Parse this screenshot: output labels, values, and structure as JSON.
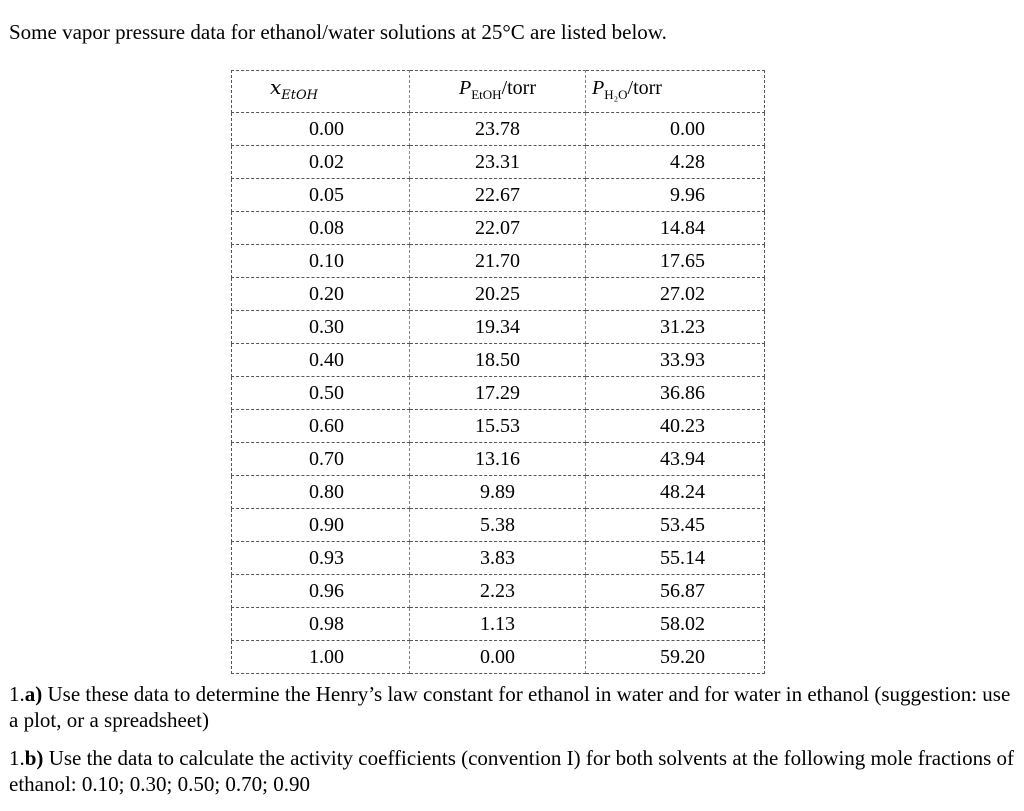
{
  "intro": "Some vapor pressure data for ethanol/water solutions at 25°C are listed below.",
  "table": {
    "headers": {
      "x_symbol": "x",
      "x_sub": "EtOH",
      "p1_symbol": "P",
      "p1_sub": "EtOH",
      "p1_unit": "/torr",
      "p2_symbol": "P",
      "p2_sub": "H₂O",
      "p2_unit": "/torr"
    },
    "rows": [
      [
        "0.00",
        "23.78",
        "0.00"
      ],
      [
        "0.02",
        "23.31",
        "4.28"
      ],
      [
        "0.05",
        "22.67",
        "9.96"
      ],
      [
        "0.08",
        "22.07",
        "14.84"
      ],
      [
        "0.10",
        "21.70",
        "17.65"
      ],
      [
        "0.20",
        "20.25",
        "27.02"
      ],
      [
        "0.30",
        "19.34",
        "31.23"
      ],
      [
        "0.40",
        "18.50",
        "33.93"
      ],
      [
        "0.50",
        "17.29",
        "36.86"
      ],
      [
        "0.60",
        "15.53",
        "40.23"
      ],
      [
        "0.70",
        "13.16",
        "43.94"
      ],
      [
        "0.80",
        "9.89",
        "48.24"
      ],
      [
        "0.90",
        "5.38",
        "53.45"
      ],
      [
        "0.93",
        "3.83",
        "55.14"
      ],
      [
        "0.96",
        "2.23",
        "56.87"
      ],
      [
        "0.98",
        "1.13",
        "58.02"
      ],
      [
        "1.00",
        "0.00",
        "59.20"
      ]
    ]
  },
  "questions": {
    "a": {
      "num": "1.",
      "label": "a)",
      "text": " Use these data to determine the Henry’s law constant for ethanol in water and for water in ethanol (suggestion: use a plot, or a spreadsheet)"
    },
    "b": {
      "num": "1.",
      "label": "b)",
      "text": " Use the data to calculate the activity coefficients (convention I) for both solvents at the following mole fractions of ethanol: 0.10; 0.30; 0.50; 0.70; 0.90"
    }
  }
}
